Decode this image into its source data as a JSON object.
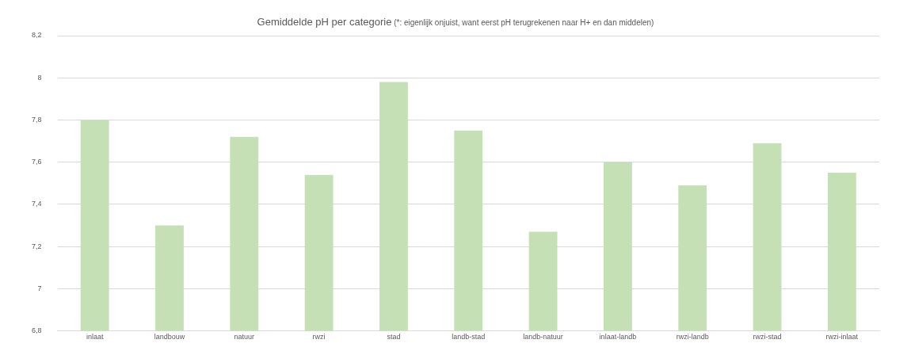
{
  "chart_data": {
    "type": "bar",
    "title": "Gemiddelde pH per categorie",
    "subtitle": "(*: eigenlijk onjuist, want eerst pH terugrekenen naar H+ en dan middelen)",
    "categories": [
      "inlaat",
      "landbouw",
      "natuur",
      "rwzi",
      "stad",
      "landb-stad",
      "landb-natuur",
      "inlaat-landb",
      "rwzi-landb",
      "rwzi-stad",
      "rwzi-inlaat"
    ],
    "values": [
      7.8,
      7.3,
      7.72,
      7.54,
      7.98,
      7.75,
      7.27,
      7.6,
      7.49,
      7.69,
      7.55
    ],
    "color": "#c5e0b4",
    "ylim": [
      6.8,
      8.2
    ],
    "yticks": [
      {
        "value": 6.8,
        "label": "6,8"
      },
      {
        "value": 7,
        "label": "7"
      },
      {
        "value": 7.2,
        "label": "7,2"
      },
      {
        "value": 7.4,
        "label": "7,4"
      },
      {
        "value": 7.6,
        "label": "7,6"
      },
      {
        "value": 7.8,
        "label": "7,8"
      },
      {
        "value": 8,
        "label": "8"
      },
      {
        "value": 8.2,
        "label": "8,2"
      }
    ],
    "grid": "y",
    "legend": false
  }
}
